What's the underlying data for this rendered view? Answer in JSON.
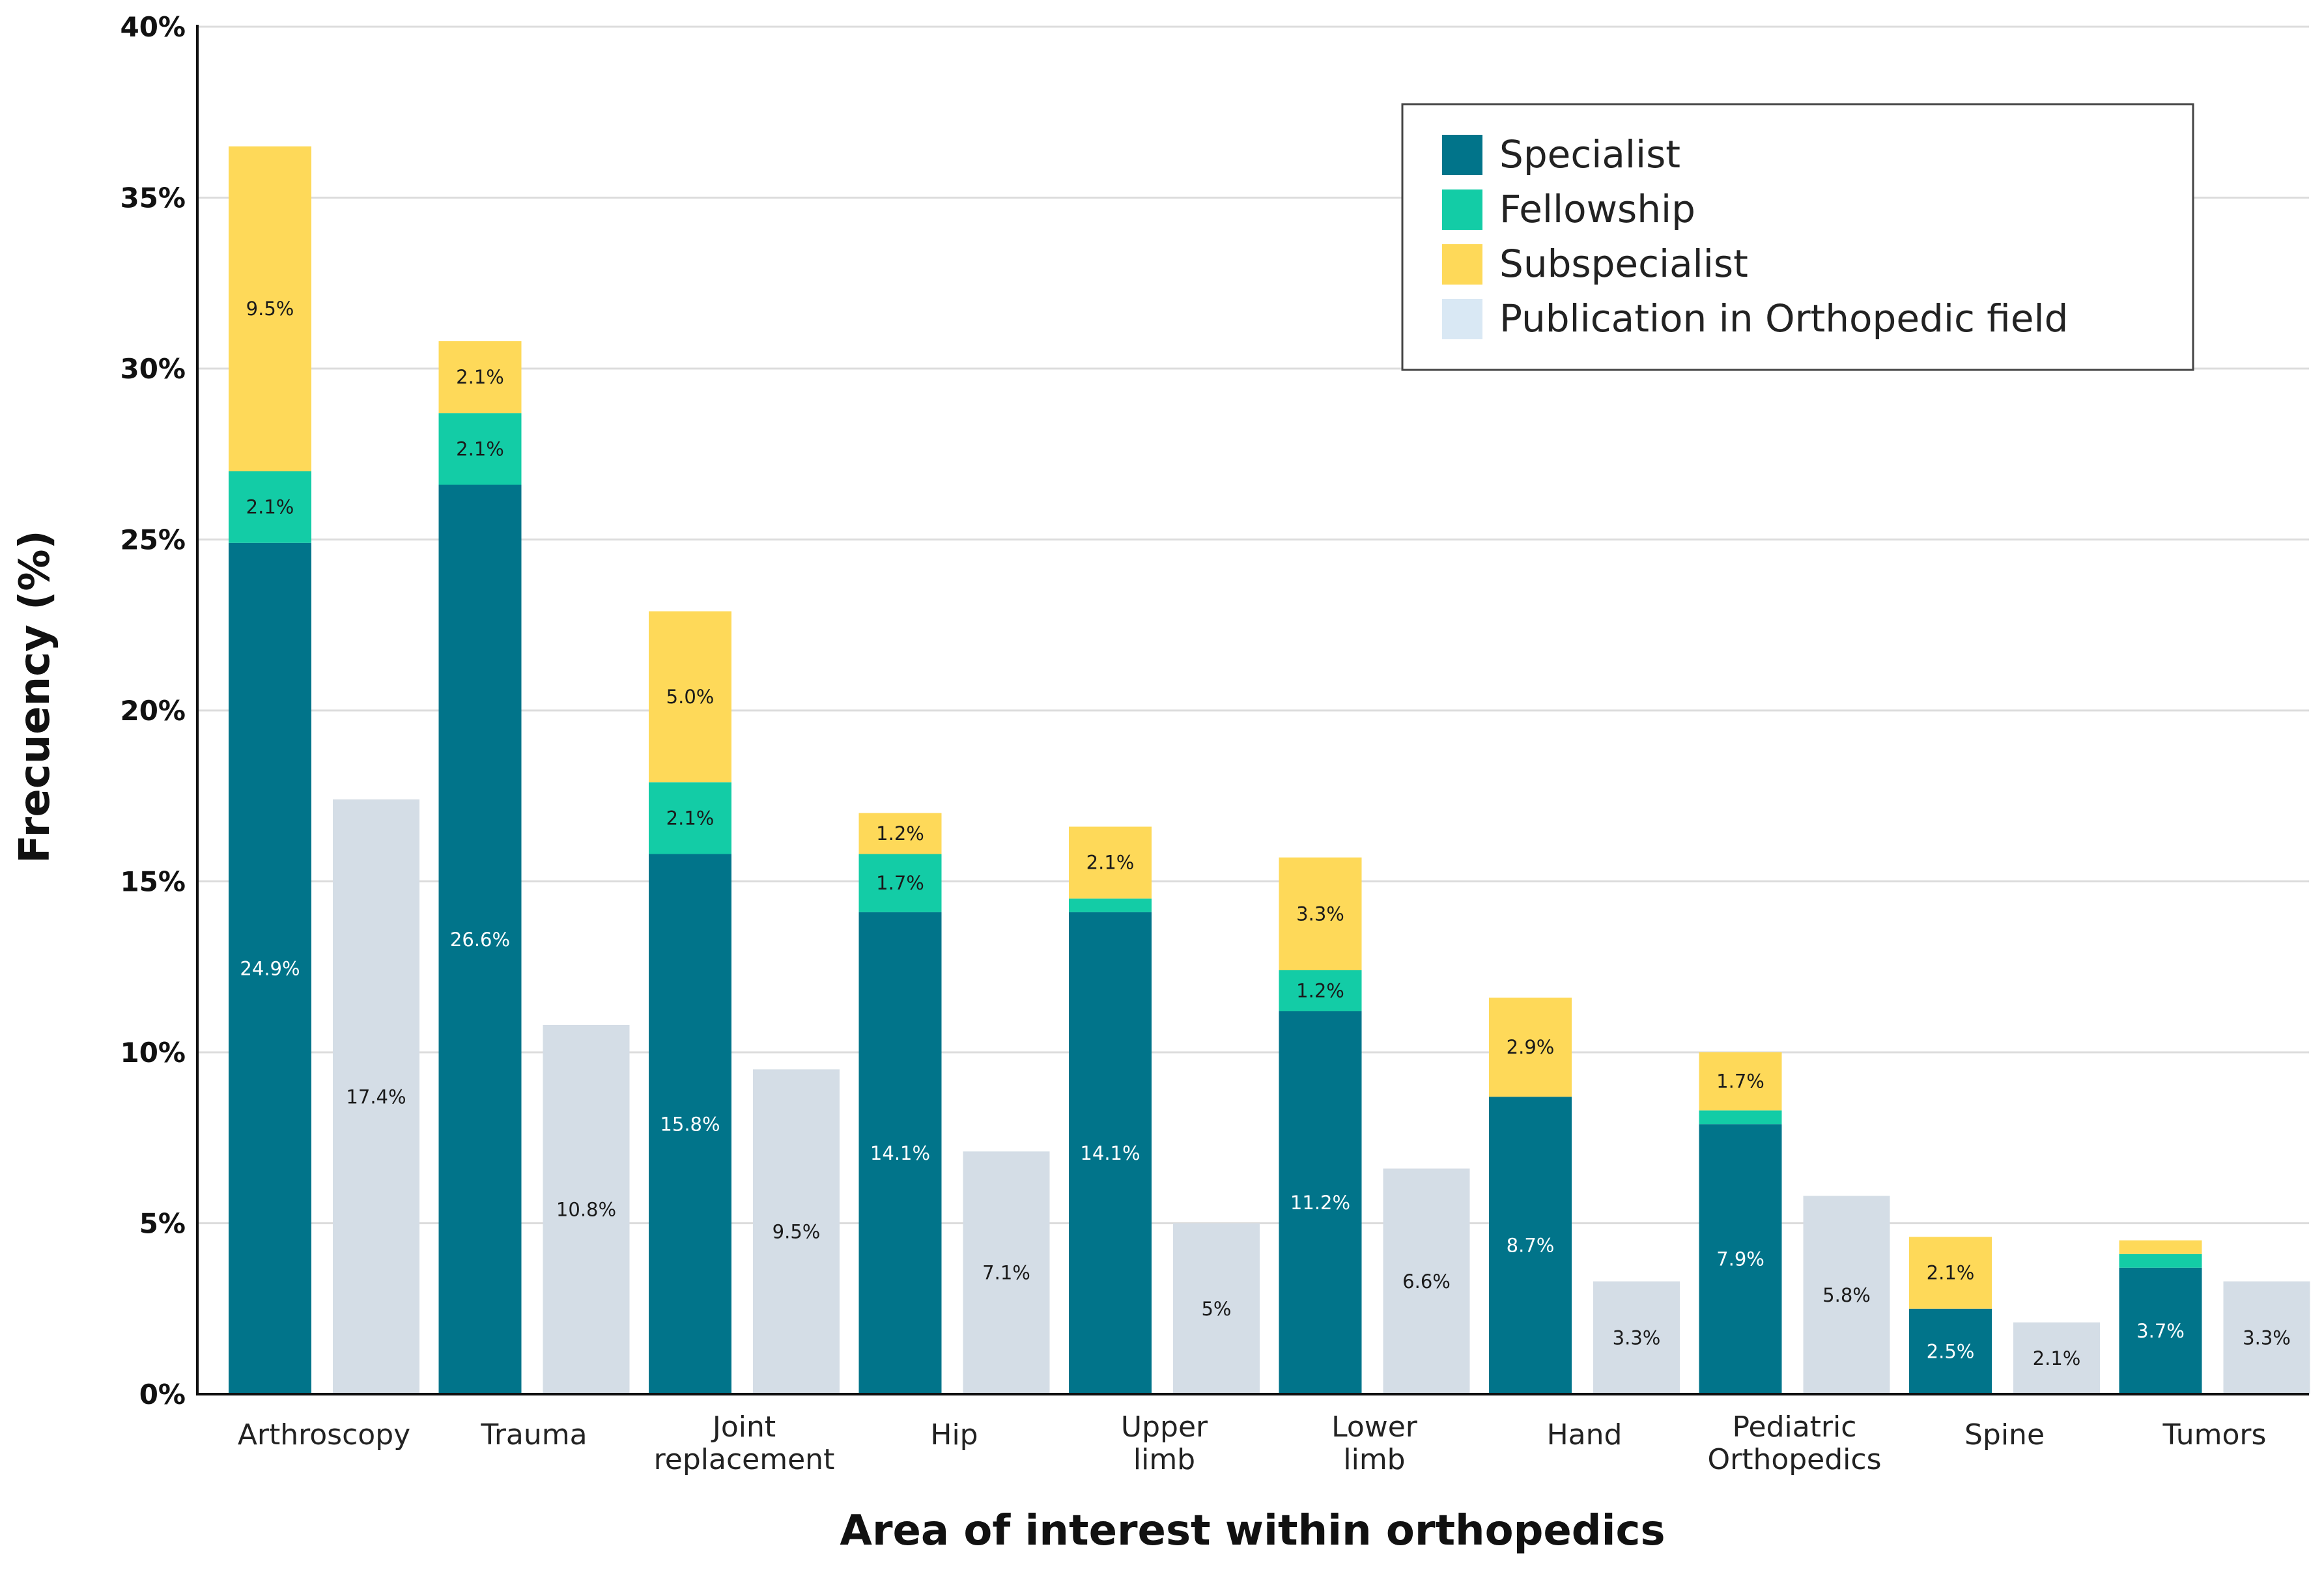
{
  "chart_data": {
    "type": "bar",
    "stacked": true,
    "title": "",
    "xlabel": "Area of interest within orthopedics",
    "ylabel": "Frecuency (%)",
    "ylim": [
      0,
      40
    ],
    "yticks": [
      "0%",
      "5%",
      "10%",
      "15%",
      "20%",
      "25%",
      "30%",
      "35%",
      "40%"
    ],
    "grid": true,
    "legend_position": "top-right",
    "categories": [
      [
        "Arthroscopy"
      ],
      [
        "Trauma"
      ],
      [
        "Joint",
        "replacement"
      ],
      [
        "Hip"
      ],
      [
        "Upper",
        "limb"
      ],
      [
        "Lower",
        "limb"
      ],
      [
        "Hand"
      ],
      [
        "Pediatric",
        "Orthopedics"
      ],
      [
        "Spine"
      ],
      [
        "Tumors"
      ]
    ],
    "series": [
      {
        "name": "Specialist",
        "color": "#01748a",
        "label_color": "#ffffff",
        "stack": "main",
        "values": [
          24.9,
          26.6,
          15.8,
          14.1,
          14.1,
          11.2,
          8.7,
          7.9,
          2.5,
          3.7
        ],
        "labels": [
          "24.9%",
          "26.6%",
          "15.8%",
          "14.1%",
          "14.1%",
          "11.2%",
          "8.7%",
          "7.9%",
          "2.5%",
          "3.7%"
        ]
      },
      {
        "name": "Fellowship",
        "color": "#13cca6",
        "label_color": "#1a1a1a",
        "stack": "main",
        "values": [
          2.1,
          2.1,
          2.1,
          1.7,
          0.4,
          1.2,
          0.0,
          0.4,
          0.0,
          0.4
        ],
        "labels": [
          "2.1%",
          "2.1%",
          "2.1%",
          "1.7%",
          "",
          "1.2%",
          "",
          "",
          "",
          ""
        ]
      },
      {
        "name": "Subspecialist",
        "color": "#fed959",
        "label_color": "#1a1a1a",
        "stack": "main",
        "values": [
          9.5,
          2.1,
          5.0,
          1.2,
          2.1,
          3.3,
          2.9,
          1.7,
          2.1,
          0.4
        ],
        "labels": [
          "9.5%",
          "2.1%",
          "5.0%",
          "1.2%",
          "2.1%",
          "3.3%",
          "2.9%",
          "1.7%",
          "2.1%",
          ""
        ]
      },
      {
        "name": "Publication in Orthopedic field",
        "color": "#d4dde6",
        "legend_color": "#d9e8f4",
        "label_color": "#1a1a1a",
        "stack": "publication",
        "values": [
          17.4,
          10.8,
          9.5,
          7.1,
          5,
          6.6,
          3.3,
          5.8,
          2.1,
          3.3
        ],
        "labels": [
          "17.4%",
          "10.8%",
          "9.5%",
          "7.1%",
          "5%",
          "6.6%",
          "3.3%",
          "5.8%",
          "2.1%",
          "3.3%"
        ]
      }
    ]
  }
}
